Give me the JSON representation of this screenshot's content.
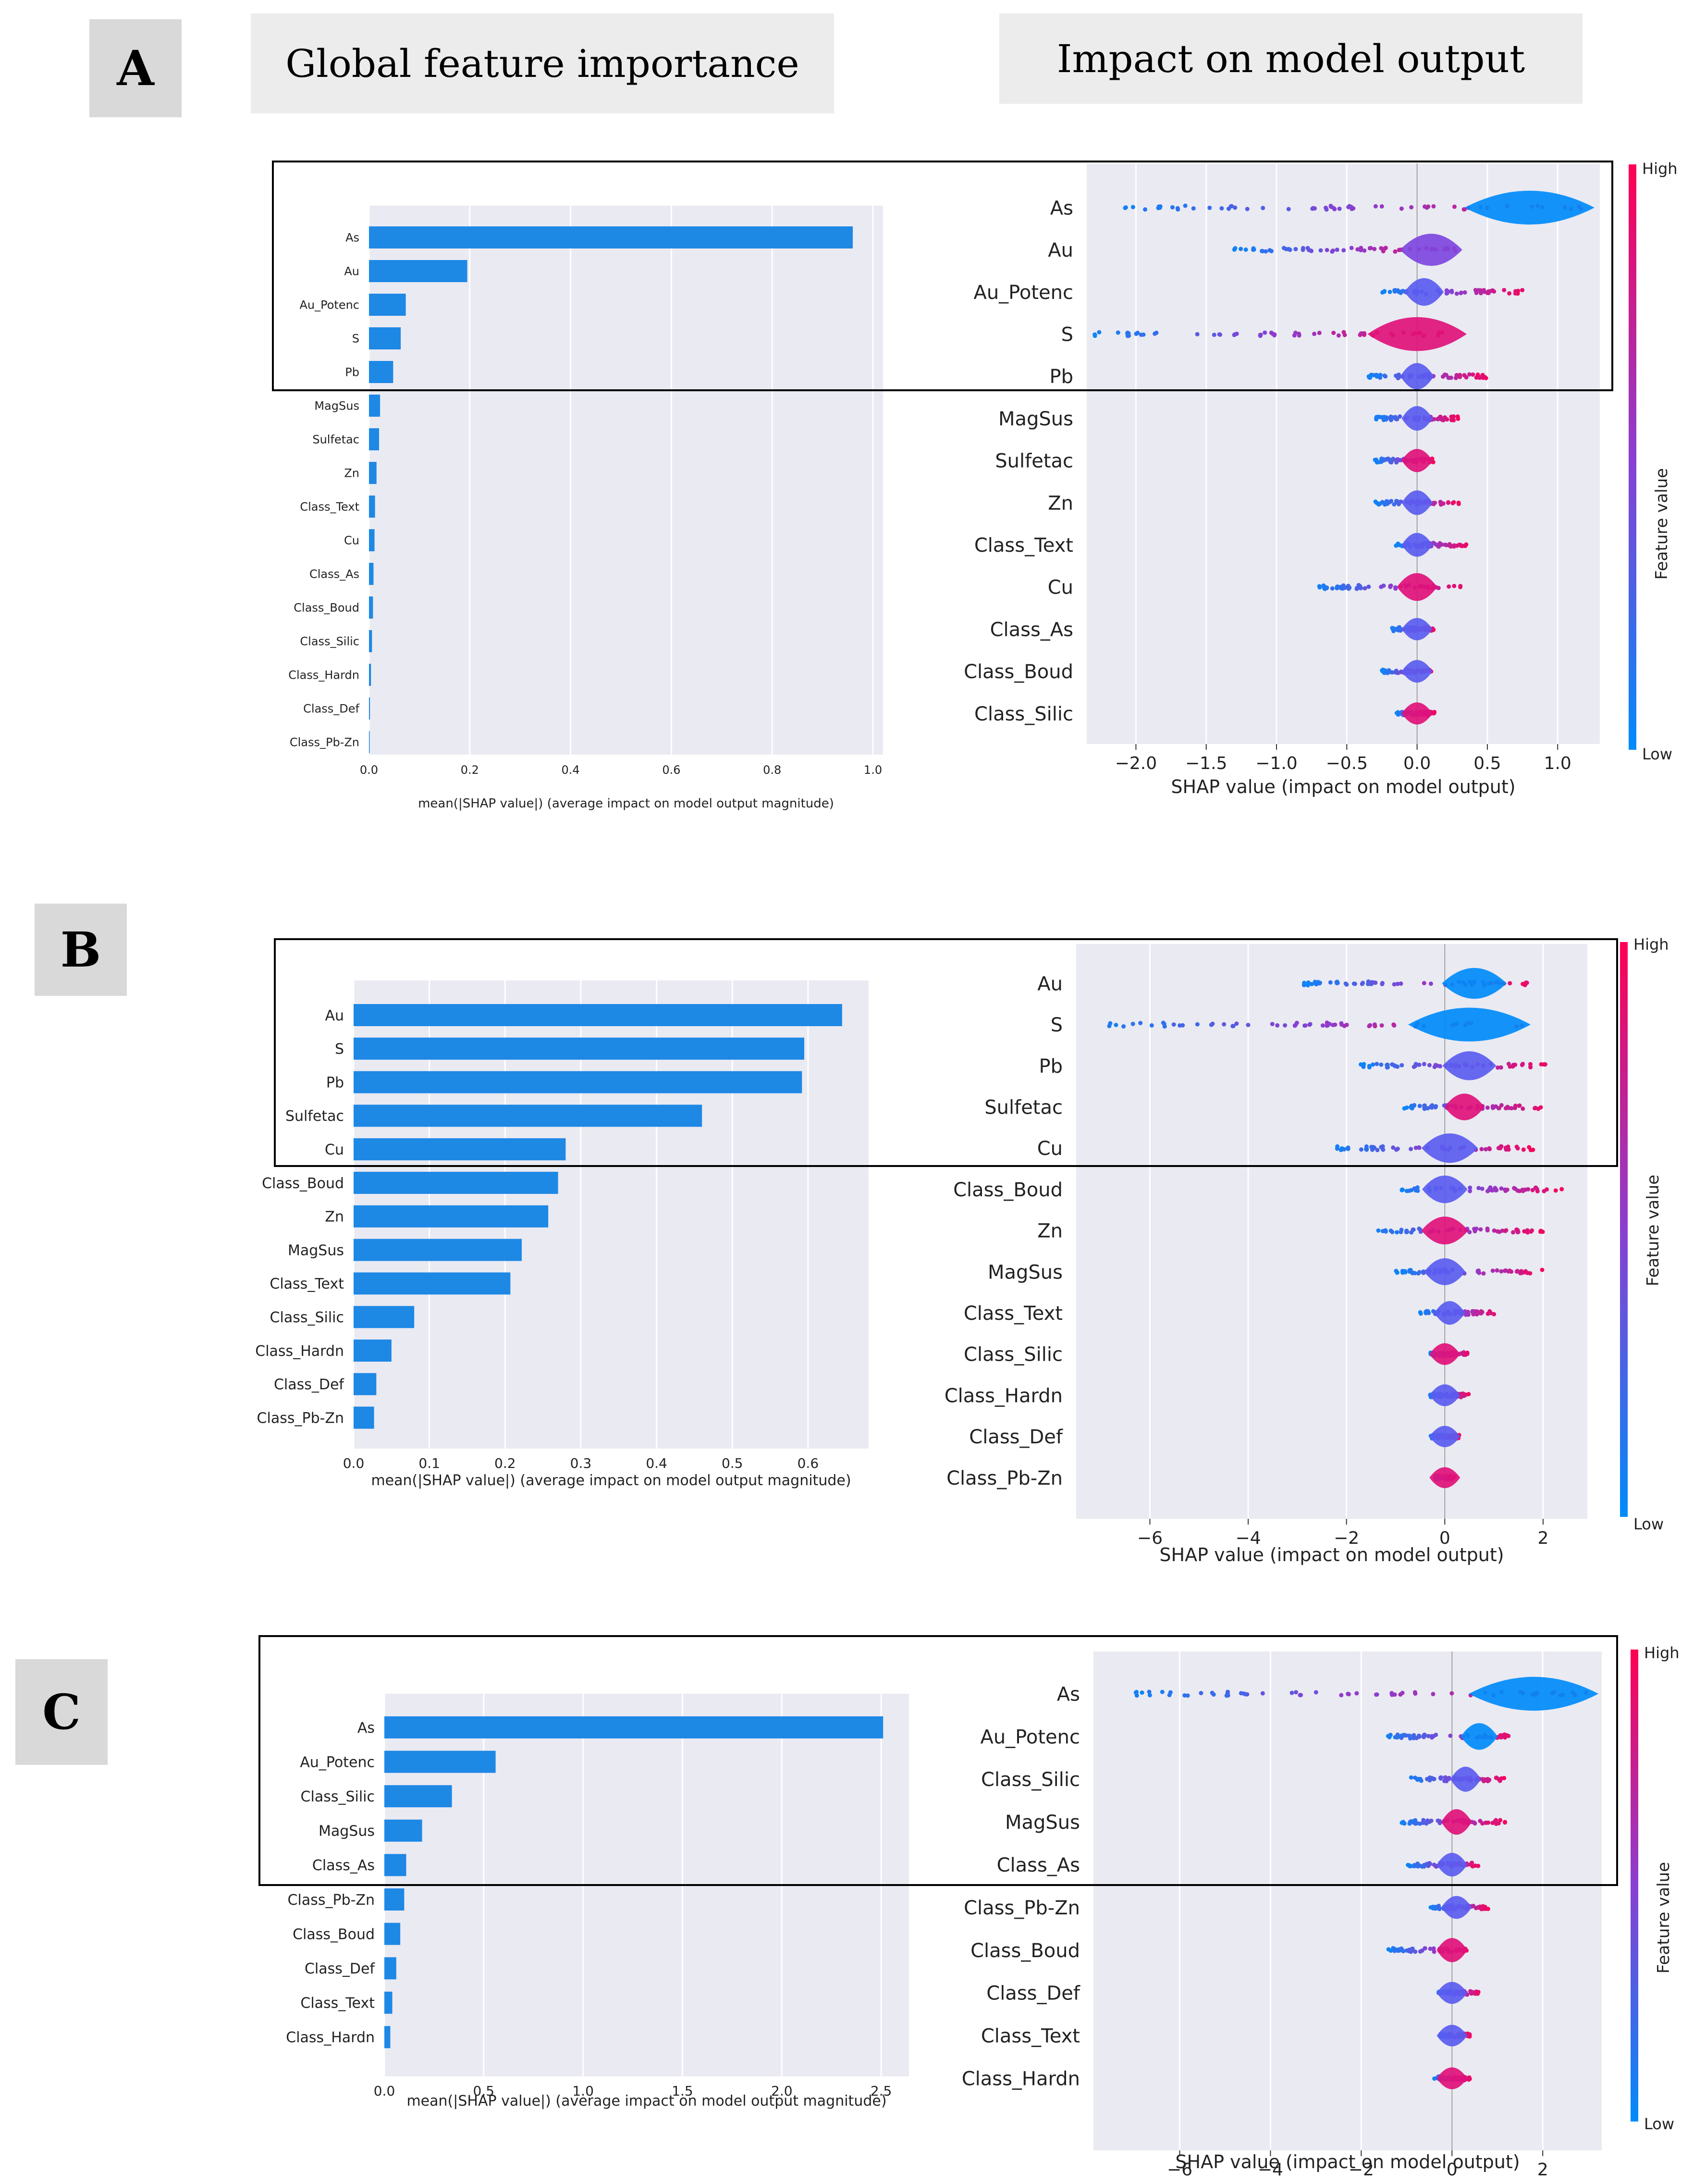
{
  "headers": {
    "global_importance": "Global feature importance",
    "impact_on_output": "Impact on model output"
  },
  "colorbar": {
    "high": "High",
    "low": "Low",
    "label": "Feature value",
    "high_color": "#ff0052",
    "low_color": "#008bfb"
  },
  "panels": [
    {
      "letter": "A"
    },
    {
      "letter": "B"
    },
    {
      "letter": "C"
    }
  ],
  "chart_data": [
    {
      "panel": "A",
      "type": "bar",
      "orientation": "horizontal",
      "categories": [
        "As",
        "Au",
        "Au_Potenc",
        "S",
        "Pb",
        "MagSus",
        "Sulfetac",
        "Zn",
        "Class_Text",
        "Cu",
        "Class_As",
        "Class_Boud",
        "Class_Silic",
        "Class_Hardn",
        "Class_Def",
        "Class_Pb-Zn"
      ],
      "values": [
        0.96,
        0.195,
        0.073,
        0.063,
        0.048,
        0.022,
        0.02,
        0.015,
        0.012,
        0.011,
        0.009,
        0.008,
        0.006,
        0.004,
        0.002,
        0.001
      ],
      "xlabel": "mean(|SHAP value|) (average impact on model output magnitude)",
      "xlim": [
        0,
        1.02
      ],
      "xticks": [
        0.0,
        0.2,
        0.4,
        0.6,
        0.8,
        1.0
      ],
      "xtick_labels": [
        "0.0",
        "0.2",
        "0.4",
        "0.6",
        "0.8",
        "1.0"
      ],
      "bar_color": "#1e88e5",
      "grid": true
    },
    {
      "panel": "A",
      "type": "scatter",
      "subtype": "shap_violin",
      "categories": [
        "As",
        "Au",
        "Au_Potenc",
        "S",
        "Pb",
        "MagSus",
        "Sulfetac",
        "Zn",
        "Class_Text",
        "Cu",
        "Class_As",
        "Class_Boud",
        "Class_Silic"
      ],
      "spread_min": [
        -2.1,
        -1.3,
        -0.25,
        -2.3,
        -0.35,
        -0.3,
        -0.3,
        -0.3,
        -0.15,
        -0.7,
        -0.18,
        -0.25,
        -0.15
      ],
      "spread_max": [
        1.2,
        0.28,
        0.75,
        0.22,
        0.5,
        0.3,
        0.12,
        0.3,
        0.35,
        0.32,
        0.12,
        0.1,
        0.13
      ],
      "center": [
        0.8,
        0.1,
        0.05,
        0.0,
        0.0,
        0.0,
        0.0,
        0.0,
        0.0,
        0.0,
        0.0,
        0.0,
        0.0
      ],
      "xlabel": "SHAP value (impact on model output)",
      "xlim": [
        -2.35,
        1.3
      ],
      "xticks": [
        -2.0,
        -1.5,
        -1.0,
        -0.5,
        0.0,
        0.5,
        1.0
      ],
      "xtick_labels": [
        "−2.0",
        "−1.5",
        "−1.0",
        "−0.5",
        "0.0",
        "0.5",
        "1.0"
      ],
      "highlighted_top_n": 5
    },
    {
      "panel": "B",
      "type": "bar",
      "orientation": "horizontal",
      "categories": [
        "Au",
        "S",
        "Pb",
        "Sulfetac",
        "Cu",
        "Class_Boud",
        "Zn",
        "MagSus",
        "Class_Text",
        "Class_Silic",
        "Class_Hardn",
        "Class_Def",
        "Class_Pb-Zn"
      ],
      "values": [
        0.645,
        0.595,
        0.592,
        0.46,
        0.28,
        0.27,
        0.257,
        0.222,
        0.207,
        0.08,
        0.05,
        0.03,
        0.027
      ],
      "xlabel": "mean(|SHAP value|) (average impact on model output magnitude)",
      "xlim": [
        0,
        0.68
      ],
      "xticks": [
        0.0,
        0.1,
        0.2,
        0.3,
        0.4,
        0.5,
        0.6
      ],
      "xtick_labels": [
        "0.0",
        "0.1",
        "0.2",
        "0.3",
        "0.4",
        "0.5",
        "0.6"
      ],
      "bar_color": "#1e88e5",
      "grid": true
    },
    {
      "panel": "B",
      "type": "scatter",
      "subtype": "shap_violin",
      "categories": [
        "Au",
        "S",
        "Pb",
        "Sulfetac",
        "Cu",
        "Class_Boud",
        "Zn",
        "MagSus",
        "Class_Text",
        "Class_Silic",
        "Class_Hardn",
        "Class_Def",
        "Class_Pb-Zn"
      ],
      "spread_min": [
        -2.9,
        -7.1,
        -1.8,
        -0.9,
        -2.3,
        -0.9,
        -1.4,
        -1.0,
        -0.5,
        -0.3,
        -0.3,
        -0.3,
        -0.2
      ],
      "spread_max": [
        1.8,
        1.8,
        2.1,
        2.0,
        1.8,
        2.4,
        2.0,
        2.0,
        1.1,
        0.5,
        0.5,
        0.3,
        0.2
      ],
      "center": [
        0.6,
        0.5,
        0.5,
        0.4,
        0.1,
        0.0,
        0.0,
        0.0,
        0.1,
        0.0,
        0.0,
        0.0,
        0.0
      ],
      "xlabel": "SHAP value (impact on model output)",
      "xlim": [
        -7.5,
        2.9
      ],
      "xticks": [
        -6,
        -4,
        -2,
        0,
        2
      ],
      "xtick_labels": [
        "−6",
        "−4",
        "−2",
        "0",
        "2"
      ],
      "highlighted_top_n": 5
    },
    {
      "panel": "C",
      "type": "bar",
      "orientation": "horizontal",
      "categories": [
        "As",
        "Au_Potenc",
        "Class_Silic",
        "MagSus",
        "Class_As",
        "Class_Pb-Zn",
        "Class_Boud",
        "Class_Def",
        "Class_Text",
        "Class_Hardn"
      ],
      "values": [
        2.51,
        0.56,
        0.34,
        0.19,
        0.11,
        0.1,
        0.08,
        0.06,
        0.04,
        0.03
      ],
      "xlabel": "mean(|SHAP value|) (average impact on model output magnitude)",
      "xlim": [
        0,
        2.64
      ],
      "xticks": [
        0.0,
        0.5,
        1.0,
        1.5,
        2.0,
        2.5
      ],
      "xtick_labels": [
        "0.0",
        "0.5",
        "1.0",
        "1.5",
        "2.0",
        "2.5"
      ],
      "bar_color": "#1e88e5",
      "grid": true
    },
    {
      "panel": "C",
      "type": "scatter",
      "subtype": "shap_violin",
      "categories": [
        "As",
        "Au_Potenc",
        "Class_Silic",
        "MagSus",
        "Class_As",
        "Class_Pb-Zn",
        "Class_Boud",
        "Class_Def",
        "Class_Text",
        "Class_Hardn"
      ],
      "spread_min": [
        -7.2,
        -1.5,
        -1.0,
        -1.2,
        -1.0,
        -0.5,
        -1.4,
        -0.3,
        -0.3,
        -0.4
      ],
      "spread_max": [
        3.0,
        1.4,
        1.2,
        1.2,
        0.6,
        0.8,
        0.4,
        0.6,
        0.4,
        0.4
      ],
      "center": [
        1.8,
        0.6,
        0.3,
        0.1,
        0.0,
        0.1,
        0.0,
        0.0,
        0.0,
        0.0
      ],
      "xlabel": "SHAP value (impact on model output)",
      "xlim": [
        -7.9,
        3.3
      ],
      "xticks": [
        -6,
        -4,
        -2,
        0,
        2
      ],
      "xtick_labels": [
        "−6",
        "−4",
        "−2",
        "0",
        "2"
      ],
      "highlighted_top_n": 5
    }
  ]
}
